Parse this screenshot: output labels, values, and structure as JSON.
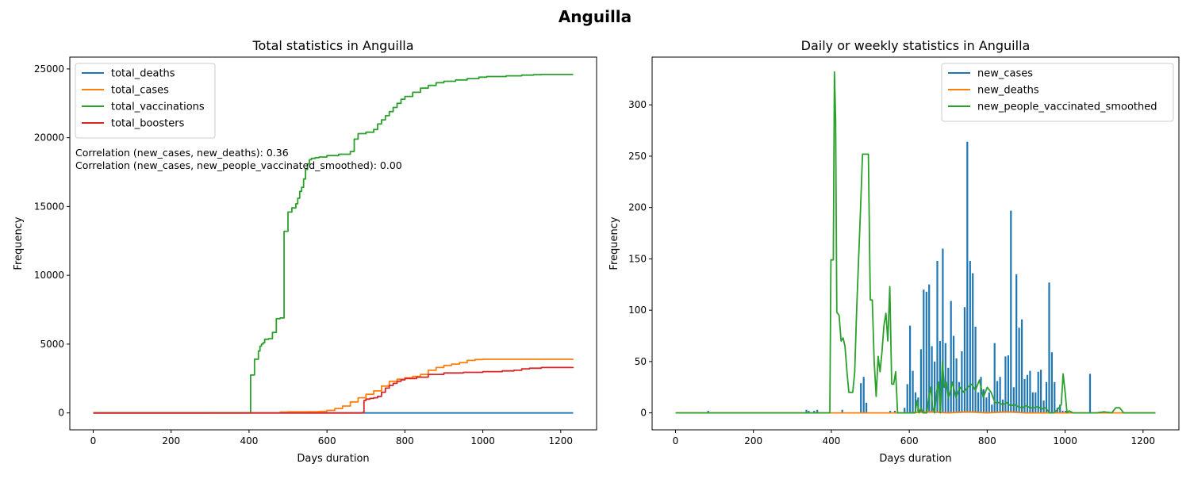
{
  "suptitle": "Anguilla",
  "chart_data": [
    {
      "type": "line",
      "title": "Total statistics in Anguilla",
      "xlabel": "Days duration",
      "ylabel": "Frequency",
      "xlim": [
        -60,
        1292
      ],
      "ylim": [
        -1230,
        25860
      ],
      "xticks": [
        0,
        200,
        400,
        600,
        800,
        1000,
        1200
      ],
      "yticks": [
        0,
        5000,
        10000,
        15000,
        20000,
        25000
      ],
      "grid": false,
      "legend": "upper-left",
      "annotations": [
        "Correlation (new_cases, new_deaths): 0.36",
        "Correlation (new_cases, new_people_vaccinated_smoothed): 0.00"
      ],
      "series": [
        {
          "name": "total_deaths",
          "color": "#1f77b4",
          "x": [
            0,
            1232
          ],
          "y": [
            0,
            0
          ],
          "step": true
        },
        {
          "name": "total_cases",
          "color": "#ff7f0e",
          "x": [
            0,
            300,
            480,
            500,
            550,
            580,
            600,
            620,
            640,
            660,
            680,
            700,
            720,
            740,
            760,
            780,
            800,
            820,
            840,
            860,
            880,
            900,
            920,
            940,
            960,
            980,
            1000,
            1232
          ],
          "y": [
            0,
            5,
            60,
            80,
            90,
            110,
            180,
            320,
            500,
            800,
            1100,
            1350,
            1600,
            1950,
            2300,
            2450,
            2550,
            2650,
            2800,
            3100,
            3300,
            3450,
            3550,
            3650,
            3820,
            3880,
            3900,
            3905
          ],
          "step": true
        },
        {
          "name": "total_vaccinations",
          "color": "#2ca02c",
          "x": [
            0,
            404,
            414,
            424,
            428,
            432,
            436,
            440,
            450,
            460,
            470,
            480,
            490,
            500,
            510,
            520,
            525,
            530,
            535,
            540,
            545,
            550,
            555,
            560,
            570,
            580,
            600,
            630,
            660,
            670,
            680,
            700,
            720,
            730,
            740,
            750,
            760,
            770,
            780,
            790,
            800,
            820,
            840,
            860,
            880,
            900,
            930,
            960,
            990,
            1010,
            1060,
            1100,
            1130,
            1150,
            1232
          ],
          "y": [
            0,
            2750,
            3900,
            4500,
            4850,
            5000,
            5100,
            5350,
            5400,
            5850,
            6850,
            6900,
            13200,
            14600,
            14900,
            15200,
            15600,
            16100,
            16400,
            17000,
            17700,
            18100,
            18400,
            18500,
            18550,
            18600,
            18700,
            18800,
            19000,
            19900,
            20300,
            20400,
            20600,
            21000,
            21300,
            21600,
            21900,
            22200,
            22500,
            22800,
            23000,
            23300,
            23600,
            23800,
            24000,
            24100,
            24200,
            24300,
            24400,
            24450,
            24500,
            24550,
            24580,
            24600,
            24600
          ],
          "step": true
        },
        {
          "name": "total_boosters",
          "color": "#d62728",
          "x": [
            0,
            690,
            695,
            700,
            710,
            720,
            730,
            740,
            750,
            760,
            770,
            780,
            790,
            800,
            830,
            860,
            900,
            950,
            1000,
            1050,
            1080,
            1100,
            1120,
            1150,
            1232
          ],
          "y": [
            0,
            20,
            900,
            1000,
            1050,
            1100,
            1200,
            1500,
            1800,
            2000,
            2150,
            2300,
            2400,
            2500,
            2600,
            2800,
            2900,
            2950,
            3000,
            3050,
            3100,
            3200,
            3250,
            3300,
            3320
          ],
          "step": true
        }
      ]
    },
    {
      "type": "line",
      "title": "Daily or weekly statistics in Anguilla",
      "xlabel": "Days duration",
      "ylabel": "Frequency",
      "xlim": [
        -60,
        1292
      ],
      "ylim": [
        -16.5,
        346.5
      ],
      "xticks": [
        0,
        200,
        400,
        600,
        800,
        1000,
        1200
      ],
      "yticks": [
        0,
        50,
        100,
        150,
        200,
        250,
        300
      ],
      "grid": false,
      "legend": "upper-right",
      "series": [
        {
          "name": "new_cases",
          "color": "#1f77b4",
          "spikes": true,
          "x": [
            84,
            336,
            342,
            356,
            364,
            428,
            476,
            483,
            490,
            551,
            563,
            588,
            595,
            602,
            609,
            616,
            623,
            630,
            637,
            644,
            651,
            658,
            665,
            672,
            679,
            686,
            693,
            700,
            707,
            714,
            721,
            728,
            735,
            742,
            749,
            756,
            763,
            770,
            777,
            784,
            791,
            798,
            805,
            812,
            819,
            826,
            833,
            840,
            847,
            854,
            861,
            868,
            875,
            882,
            889,
            896,
            903,
            910,
            917,
            924,
            931,
            938,
            945,
            952,
            959,
            966,
            973,
            980,
            987,
            994,
            1001,
            1064
          ],
          "y": [
            2,
            3,
            2,
            2,
            3,
            3,
            29,
            35,
            10,
            2,
            2,
            5,
            28,
            85,
            41,
            20,
            15,
            62,
            120,
            118,
            125,
            65,
            50,
            148,
            70,
            160,
            68,
            44,
            109,
            75,
            53,
            30,
            60,
            103,
            264,
            148,
            136,
            84,
            20,
            35,
            23,
            15,
            20,
            8,
            68,
            31,
            35,
            13,
            55,
            56,
            197,
            25,
            135,
            83,
            91,
            33,
            37,
            41,
            20,
            20,
            40,
            42,
            12,
            30,
            127,
            59,
            30,
            5,
            8,
            2,
            2,
            38
          ]
        },
        {
          "name": "new_deaths",
          "color": "#ff7f0e",
          "x": [
            0,
            600,
            650,
            700,
            750,
            800,
            850,
            900,
            1232
          ],
          "y": [
            0,
            0,
            1,
            0,
            1,
            0,
            1,
            0,
            0
          ]
        },
        {
          "name": "new_people_vaccinated_smoothed",
          "color": "#2ca02c",
          "x": [
            0,
            396,
            399,
            405,
            408,
            411,
            414,
            420,
            425,
            430,
            435,
            440,
            445,
            450,
            455,
            460,
            465,
            470,
            475,
            480,
            485,
            488,
            495,
            500,
            505,
            510,
            515,
            520,
            525,
            530,
            535,
            540,
            545,
            550,
            555,
            560,
            565,
            570,
            575,
            580,
            585,
            590,
            595,
            600,
            605,
            610,
            615,
            620,
            625,
            630,
            635,
            640,
            645,
            650,
            655,
            660,
            665,
            670,
            675,
            680,
            685,
            690,
            695,
            700,
            705,
            710,
            720,
            730,
            740,
            750,
            760,
            770,
            780,
            790,
            800,
            810,
            820,
            830,
            840,
            850,
            860,
            870,
            880,
            890,
            900,
            910,
            920,
            930,
            940,
            950,
            960,
            970,
            980,
            990,
            995,
            1000,
            1005,
            1010,
            1020,
            1040,
            1060,
            1080,
            1100,
            1120,
            1130,
            1140,
            1150,
            1160,
            1232
          ],
          "y": [
            0,
            0,
            149,
            149,
            332,
            285,
            98,
            95,
            70,
            73,
            65,
            40,
            20,
            20,
            20,
            40,
            100,
            150,
            200,
            252,
            252,
            252,
            252,
            110,
            110,
            50,
            16,
            55,
            40,
            60,
            85,
            97,
            70,
            123,
            28,
            28,
            40,
            0,
            0,
            0,
            0,
            0,
            0,
            0,
            0,
            0,
            0,
            12,
            0,
            5,
            0,
            0,
            0,
            15,
            25,
            5,
            0,
            20,
            30,
            0,
            50,
            25,
            30,
            15,
            20,
            30,
            15,
            25,
            20,
            25,
            28,
            22,
            32,
            15,
            25,
            20,
            10,
            10,
            8,
            10,
            7,
            8,
            6,
            5,
            7,
            5,
            5,
            6,
            4,
            5,
            0,
            0,
            3,
            8,
            38,
            20,
            0,
            2,
            0,
            0,
            0,
            0,
            1,
            0,
            5,
            5,
            0,
            0,
            0
          ]
        }
      ]
    }
  ]
}
